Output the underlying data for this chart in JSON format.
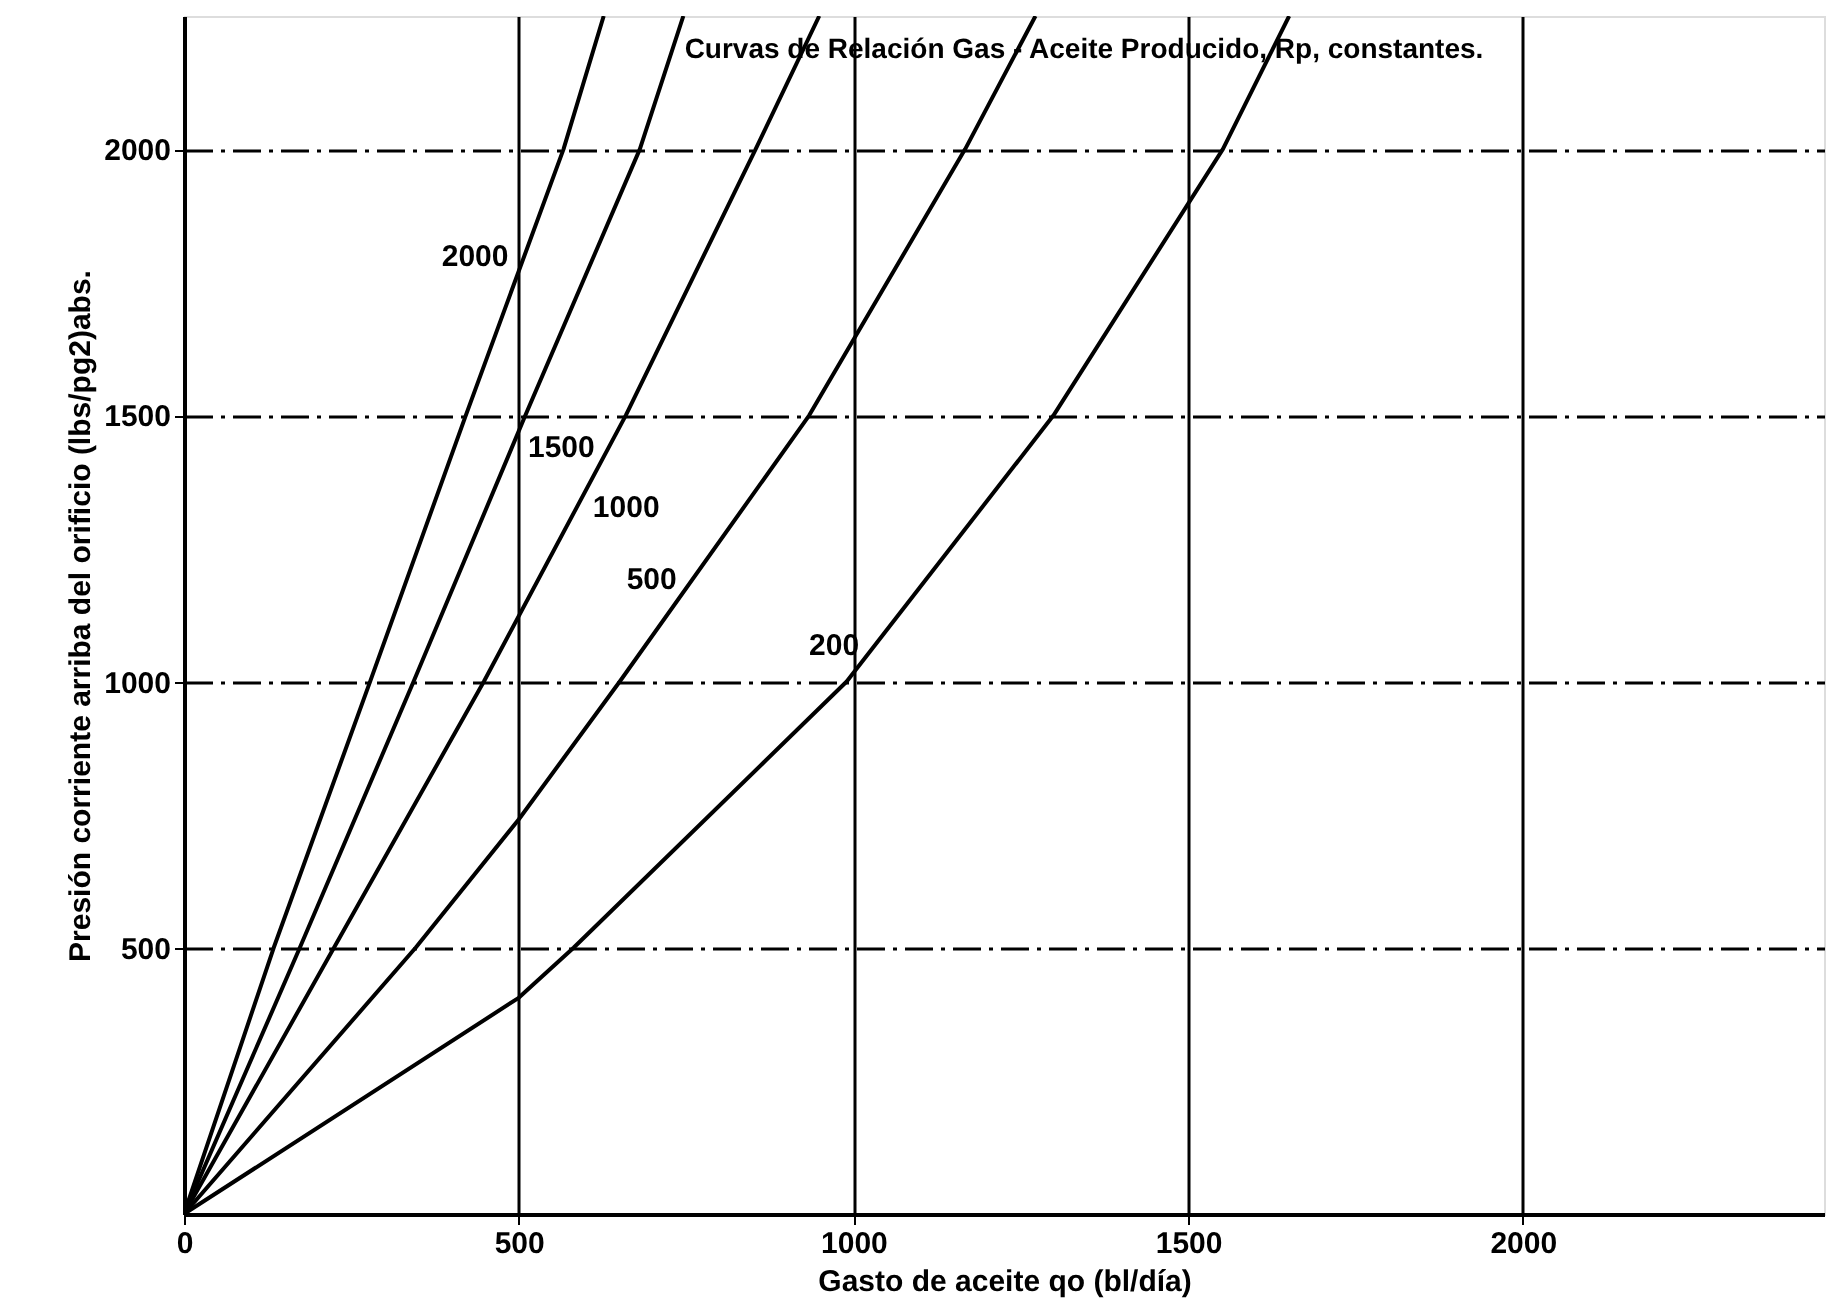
{
  "chart_data": {
    "type": "line",
    "title": "Curvas de Relación Gas - Aceite Producido, Rp, constantes.",
    "xlabel": "Gasto de aceite qo (bl/día)",
    "ylabel": "Presión corriente arriba del orificio (lbs/pg2)abs.",
    "xlim": [
      0,
      2450
    ],
    "ylim": [
      0,
      2250
    ],
    "xticks": [
      0,
      500,
      1000,
      1500,
      2000
    ],
    "yticks": [
      500,
      1000,
      1500,
      2000
    ],
    "grid": true,
    "marker": "none",
    "line_style": "solid",
    "series": [
      {
        "name": "2000",
        "color": "#000000",
        "x": [
          0,
          134,
          278,
          421,
          567,
          627
        ],
        "values": [
          0,
          500,
          1000,
          1500,
          2000,
          2250
        ]
      },
      {
        "name": "1500",
        "color": "#000000",
        "x": [
          0,
          173,
          343,
          510,
          681,
          746
        ],
        "values": [
          0,
          500,
          1000,
          1500,
          2000,
          2250
        ]
      },
      {
        "name": "1000",
        "color": "#000000",
        "x": [
          0,
          224,
          448,
          660,
          854,
          949
        ],
        "values": [
          0,
          500,
          1000,
          1500,
          2000,
          2250
        ]
      },
      {
        "name": "500",
        "color": "#000000",
        "x": [
          0,
          346,
          500,
          651,
          934,
          1167,
          1272
        ],
        "values": [
          0,
          500,
          741,
          1000,
          1500,
          2000,
          2250
        ]
      },
      {
        "name": "200",
        "color": "#000000",
        "x": [
          0,
          500,
          582,
          990,
          1299,
          1552,
          1651
        ],
        "values": [
          0,
          406,
          500,
          1000,
          1500,
          2000,
          2250
        ]
      }
    ]
  }
}
